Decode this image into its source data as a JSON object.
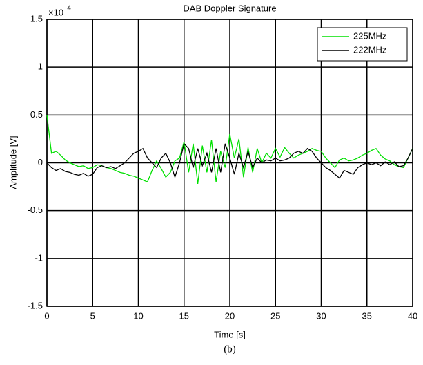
{
  "chart_data": {
    "type": "line",
    "title": "DAB Doppler Signature",
    "x_label": "Time [s]",
    "y_label": "Amplitude [V]",
    "y_multiplier": {
      "base": "×10",
      "exponent": "-4"
    },
    "caption": "(b)",
    "x": [
      0,
      0.5,
      1,
      1.5,
      2,
      2.5,
      3,
      3.5,
      4,
      4.5,
      5,
      5.5,
      6,
      6.5,
      7,
      7.5,
      8,
      8.5,
      9,
      9.5,
      10,
      10.5,
      11,
      11.5,
      12,
      12.5,
      13,
      13.5,
      14,
      14.5,
      15,
      15.5,
      16,
      16.5,
      17,
      17.5,
      18,
      18.5,
      19,
      19.5,
      20,
      20.5,
      21,
      21.5,
      22,
      22.5,
      23,
      23.5,
      24,
      24.5,
      25,
      25.5,
      26,
      26.5,
      27,
      27.5,
      28,
      28.5,
      29,
      29.5,
      30,
      30.5,
      31,
      31.5,
      32,
      32.5,
      33,
      33.5,
      34,
      34.5,
      35,
      35.5,
      36,
      36.5,
      37,
      37.5,
      38,
      38.5,
      39,
      39.5,
      40
    ],
    "series": [
      {
        "name": "225MHz",
        "color": "#00e000",
        "values": [
          0.5,
          0.1,
          0.12,
          0.08,
          0.03,
          0,
          -0.02,
          -0.04,
          -0.03,
          -0.06,
          -0.05,
          -0.02,
          -0.03,
          -0.05,
          -0.06,
          -0.08,
          -0.1,
          -0.11,
          -0.13,
          -0.14,
          -0.16,
          -0.18,
          -0.2,
          -0.08,
          0.02,
          -0.06,
          -0.15,
          -0.1,
          0.02,
          0.05,
          0.22,
          -0.1,
          0.2,
          -0.22,
          0.18,
          -0.1,
          0.24,
          -0.2,
          0.12,
          -0.05,
          0.3,
          0.05,
          0.25,
          -0.15,
          0.16,
          -0.1,
          0.15,
          0,
          0.1,
          0.05,
          0.15,
          0.06,
          0.16,
          0.1,
          0.05,
          0.08,
          0.1,
          0.12,
          0.15,
          0.13,
          0.12,
          0.05,
          0,
          -0.05,
          0.03,
          0.05,
          0.02,
          0.03,
          0.05,
          0.08,
          0.1,
          0.13,
          0.15,
          0.08,
          0.04,
          0.02,
          -0.02,
          -0.04,
          -0.05,
          0.05,
          0.15
        ]
      },
      {
        "name": "222MHz",
        "color": "#000000",
        "values": [
          0,
          -0.05,
          -0.08,
          -0.06,
          -0.09,
          -0.1,
          -0.12,
          -0.13,
          -0.11,
          -0.14,
          -0.12,
          -0.05,
          -0.03,
          -0.05,
          -0.04,
          -0.06,
          -0.03,
          0,
          0.05,
          0.1,
          0.12,
          0.15,
          0.05,
          0,
          -0.05,
          0.05,
          0.1,
          0,
          -0.15,
          0,
          0.2,
          0.15,
          -0.05,
          0.15,
          -0.03,
          0.1,
          -0.1,
          0.15,
          -0.1,
          0.2,
          0.05,
          -0.12,
          0.1,
          -0.05,
          0.12,
          -0.05,
          0.05,
          0,
          0.03,
          0.02,
          0.05,
          0.02,
          0.03,
          0.05,
          0.1,
          0.12,
          0.1,
          0.15,
          0.12,
          0.05,
          0,
          -0.05,
          -0.08,
          -0.12,
          -0.16,
          -0.08,
          -0.1,
          -0.12,
          -0.05,
          -0.02,
          0,
          -0.02,
          0,
          -0.03,
          0.01,
          -0.02,
          0.01,
          -0.04,
          -0.03,
          0.05,
          0.15
        ]
      }
    ],
    "xlim": [
      0,
      40
    ],
    "xticks": [
      0,
      5,
      10,
      15,
      20,
      25,
      30,
      35,
      40
    ],
    "ylim": [
      -1.5,
      1.5
    ],
    "yticks": [
      -1.5,
      -1,
      -0.5,
      0,
      0.5,
      1,
      1.5
    ],
    "grid": true,
    "legend": "upper right"
  }
}
